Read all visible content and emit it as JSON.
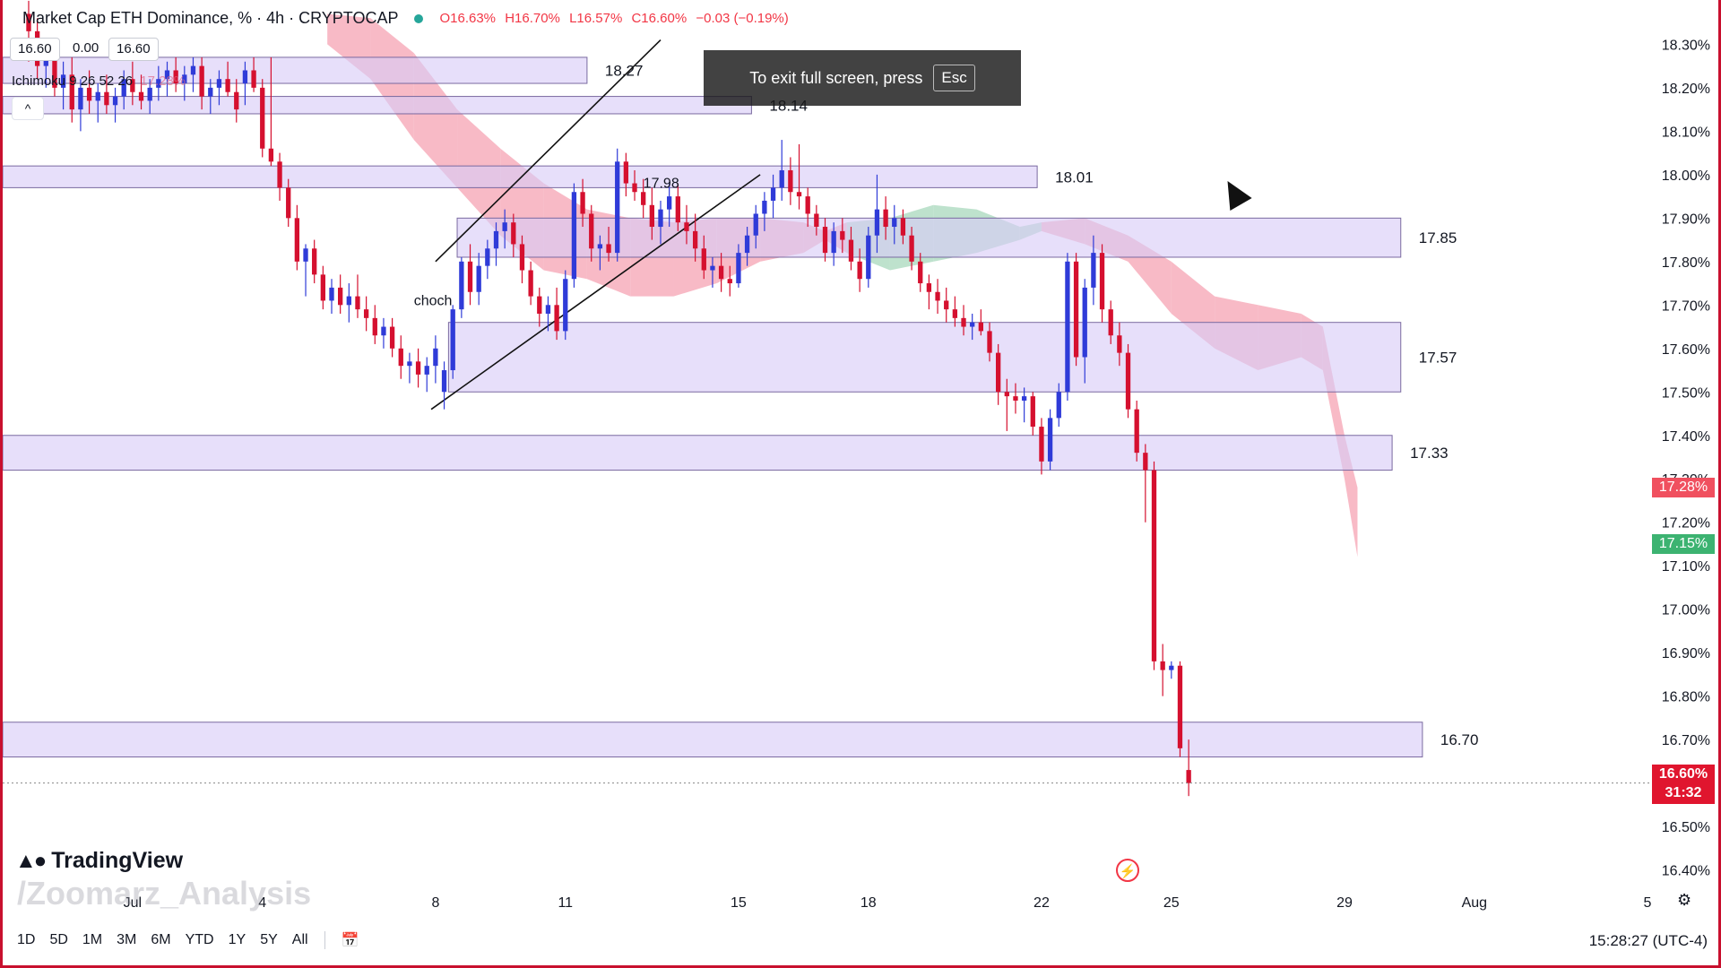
{
  "legend": {
    "symbol": "Market Cap ETH Dominance, % · 4h · CRYPTOCAP",
    "open": "O16.63%",
    "high": "H16.70%",
    "low": "L16.57%",
    "close": "C16.60%",
    "change": "−0.03 (−0.19%)"
  },
  "value_boxes": [
    "16.60",
    "0.00",
    "16.60"
  ],
  "indicator": {
    "name": "Ichimoku 9 26 52 26",
    "value": "17.28%"
  },
  "collapse_label": "^",
  "fullscreen_toast": {
    "text": "To exit full screen, press",
    "key": "Esc"
  },
  "brand": {
    "name": "TradingView",
    "watermark": "/Zoomarz_Analysis"
  },
  "timeframes": [
    "1D",
    "5D",
    "1M",
    "3M",
    "6M",
    "YTD",
    "1Y",
    "5Y",
    "All"
  ],
  "clock": "15:28:27 (UTC-4)",
  "current_price": {
    "value": "16.60%",
    "countdown": "31:32"
  },
  "price_badges": [
    {
      "label": "17.28%",
      "value": 17.28,
      "color": "#f0505f"
    },
    {
      "label": "17.15%",
      "value": 17.15,
      "color": "#3cb371"
    }
  ],
  "colors": {
    "up": "#2f3bd8",
    "down": "#d5102f",
    "zone": "#d9ccf7",
    "zone_border": "#7a6aa0",
    "cloud_bear": "#f5a3b3",
    "cloud_bull": "#a8d8bc"
  },
  "chart_data": {
    "type": "candlestick",
    "y_axis": {
      "min": 16.36,
      "max": 18.34,
      "ticks": [
        "18.30%",
        "18.20%",
        "18.10%",
        "18.00%",
        "17.90%",
        "17.80%",
        "17.70%",
        "17.60%",
        "17.50%",
        "17.40%",
        "17.30%",
        "17.20%",
        "17.10%",
        "17.00%",
        "16.90%",
        "16.80%",
        "16.70%",
        "16.60%",
        "16.50%",
        "16.40%"
      ],
      "tick_values": [
        18.3,
        18.2,
        18.1,
        18.0,
        17.9,
        17.8,
        17.7,
        17.6,
        17.5,
        17.4,
        17.3,
        17.2,
        17.1,
        17.0,
        16.9,
        16.8,
        16.7,
        16.6,
        16.5,
        16.4
      ]
    },
    "x_axis": {
      "min": -3,
      "max": 35,
      "labels": [
        "Jul",
        "4",
        "8",
        "11",
        "15",
        "18",
        "22",
        "25",
        "29",
        "Aug",
        "5"
      ],
      "label_values": [
        0,
        3,
        7,
        10,
        14,
        17,
        21,
        24,
        28,
        31,
        35
      ]
    },
    "zones": [
      {
        "top": 18.27,
        "bottom": 18.21,
        "x0": -3,
        "x1": 10.5,
        "label": "18.27"
      },
      {
        "top": 18.18,
        "bottom": 18.14,
        "x0": -3,
        "x1": 14.3,
        "label": "18.14"
      },
      {
        "top": 18.02,
        "bottom": 17.97,
        "x0": -3,
        "x1": 20.9,
        "label": "18.01"
      },
      {
        "top": 17.9,
        "bottom": 17.81,
        "x0": 7.5,
        "x1": 29.3,
        "label": "17.85"
      },
      {
        "top": 17.66,
        "bottom": 17.5,
        "x0": 7.3,
        "x1": 29.3,
        "label": "17.57"
      },
      {
        "top": 17.4,
        "bottom": 17.32,
        "x0": -3,
        "x1": 29.1,
        "label": "17.33"
      },
      {
        "top": 16.74,
        "bottom": 16.66,
        "x0": -3,
        "x1": 29.8,
        "label": "16.70"
      }
    ],
    "annotations": [
      {
        "text": "choch",
        "x": 6.5,
        "y": 17.7
      },
      {
        "text": "17.98",
        "x": 11.8,
        "y": 17.97
      }
    ],
    "channel_lines": [
      {
        "x0": 7.0,
        "y0": 17.8,
        "x1": 12.2,
        "y1": 18.31
      },
      {
        "x0": 6.9,
        "y0": 17.46,
        "x1": 14.5,
        "y1": 18.0
      }
    ],
    "candles": [
      [
        -2.4,
        18.37,
        18.4,
        18.26,
        18.33
      ],
      [
        -2.2,
        18.33,
        18.36,
        18.22,
        18.25
      ],
      [
        -2.0,
        18.25,
        18.3,
        18.2,
        18.28
      ],
      [
        -1.8,
        18.28,
        18.31,
        18.18,
        18.2
      ],
      [
        -1.6,
        18.2,
        18.26,
        18.15,
        18.23
      ],
      [
        -1.4,
        18.23,
        18.27,
        18.12,
        18.15
      ],
      [
        -1.2,
        18.15,
        18.22,
        18.1,
        18.2
      ],
      [
        -1.0,
        18.2,
        18.24,
        18.14,
        18.17
      ],
      [
        -0.8,
        18.17,
        18.21,
        18.12,
        18.19
      ],
      [
        -0.6,
        18.19,
        18.23,
        18.14,
        18.16
      ],
      [
        -0.4,
        18.16,
        18.2,
        18.12,
        18.18
      ],
      [
        -0.2,
        18.18,
        18.24,
        18.15,
        18.22
      ],
      [
        0.0,
        18.22,
        18.26,
        18.16,
        18.19
      ],
      [
        0.2,
        18.19,
        18.23,
        18.15,
        18.17
      ],
      [
        0.4,
        18.17,
        18.22,
        18.14,
        18.2
      ],
      [
        0.6,
        18.2,
        18.25,
        18.17,
        18.22
      ],
      [
        0.8,
        18.22,
        18.26,
        18.18,
        18.24
      ],
      [
        1.0,
        18.24,
        18.27,
        18.19,
        18.21
      ],
      [
        1.2,
        18.21,
        18.25,
        18.17,
        18.23
      ],
      [
        1.4,
        18.23,
        18.27,
        18.19,
        18.25
      ],
      [
        1.6,
        18.25,
        18.27,
        18.15,
        18.18
      ],
      [
        1.8,
        18.18,
        18.22,
        18.14,
        18.2
      ],
      [
        2.0,
        18.2,
        18.24,
        18.16,
        18.22
      ],
      [
        2.2,
        18.22,
        18.26,
        18.18,
        18.19
      ],
      [
        2.4,
        18.19,
        18.22,
        18.12,
        18.15
      ],
      [
        2.6,
        18.21,
        18.26,
        18.16,
        18.24
      ],
      [
        2.8,
        18.24,
        18.27,
        18.19,
        18.2
      ],
      [
        3.0,
        18.2,
        18.22,
        18.04,
        18.06
      ],
      [
        3.2,
        18.06,
        18.27,
        18.02,
        18.03
      ],
      [
        3.4,
        18.03,
        18.05,
        17.94,
        17.97
      ],
      [
        3.6,
        17.97,
        17.99,
        17.88,
        17.9
      ],
      [
        3.8,
        17.9,
        17.93,
        17.78,
        17.8
      ],
      [
        4.0,
        17.8,
        17.84,
        17.72,
        17.83
      ],
      [
        4.2,
        17.83,
        17.85,
        17.75,
        17.77
      ],
      [
        4.4,
        17.77,
        17.79,
        17.69,
        17.71
      ],
      [
        4.6,
        17.71,
        17.76,
        17.68,
        17.74
      ],
      [
        4.8,
        17.74,
        17.77,
        17.68,
        17.7
      ],
      [
        5.0,
        17.7,
        17.75,
        17.66,
        17.72
      ],
      [
        5.2,
        17.72,
        17.77,
        17.67,
        17.69
      ],
      [
        5.4,
        17.69,
        17.72,
        17.64,
        17.67
      ],
      [
        5.6,
        17.67,
        17.7,
        17.61,
        17.63
      ],
      [
        5.8,
        17.63,
        17.67,
        17.6,
        17.65
      ],
      [
        6.0,
        17.65,
        17.67,
        17.58,
        17.6
      ],
      [
        6.2,
        17.6,
        17.63,
        17.53,
        17.56
      ],
      [
        6.4,
        17.56,
        17.59,
        17.52,
        17.57
      ],
      [
        6.6,
        17.57,
        17.6,
        17.51,
        17.54
      ],
      [
        6.8,
        17.54,
        17.58,
        17.5,
        17.56
      ],
      [
        7.0,
        17.56,
        17.63,
        17.52,
        17.6
      ],
      [
        7.2,
        17.5,
        17.57,
        17.46,
        17.55
      ],
      [
        7.4,
        17.55,
        17.7,
        17.53,
        17.69
      ],
      [
        7.6,
        17.69,
        17.81,
        17.67,
        17.8
      ],
      [
        7.8,
        17.8,
        17.84,
        17.7,
        17.73
      ],
      [
        8.0,
        17.73,
        17.82,
        17.7,
        17.79
      ],
      [
        8.2,
        17.79,
        17.85,
        17.76,
        17.83
      ],
      [
        8.4,
        17.83,
        17.89,
        17.79,
        17.87
      ],
      [
        8.6,
        17.87,
        17.92,
        17.83,
        17.89
      ],
      [
        8.8,
        17.89,
        17.91,
        17.81,
        17.84
      ],
      [
        9.0,
        17.84,
        17.86,
        17.75,
        17.78
      ],
      [
        9.2,
        17.78,
        17.8,
        17.7,
        17.72
      ],
      [
        9.4,
        17.72,
        17.74,
        17.65,
        17.68
      ],
      [
        9.6,
        17.68,
        17.72,
        17.64,
        17.7
      ],
      [
        9.8,
        17.7,
        17.74,
        17.62,
        17.64
      ],
      [
        10.0,
        17.64,
        17.78,
        17.62,
        17.76
      ],
      [
        10.2,
        17.76,
        17.98,
        17.74,
        17.96
      ],
      [
        10.4,
        17.96,
        17.99,
        17.88,
        17.91
      ],
      [
        10.6,
        17.91,
        17.93,
        17.8,
        17.83
      ],
      [
        10.8,
        17.83,
        17.86,
        17.78,
        17.84
      ],
      [
        11.0,
        17.84,
        17.88,
        17.8,
        17.82
      ],
      [
        11.2,
        17.82,
        18.06,
        17.8,
        18.03
      ],
      [
        11.4,
        18.03,
        18.05,
        17.95,
        17.98
      ],
      [
        11.6,
        17.98,
        18.01,
        17.94,
        17.96
      ],
      [
        11.8,
        17.96,
        17.99,
        17.9,
        17.93
      ],
      [
        12.0,
        17.93,
        17.97,
        17.85,
        17.88
      ],
      [
        12.2,
        17.88,
        17.94,
        17.84,
        17.92
      ],
      [
        12.4,
        17.92,
        17.98,
        17.88,
        17.95
      ],
      [
        12.6,
        17.95,
        17.98,
        17.87,
        17.89
      ],
      [
        12.8,
        17.89,
        17.93,
        17.84,
        17.87
      ],
      [
        13.0,
        17.87,
        17.91,
        17.8,
        17.83
      ],
      [
        13.2,
        17.83,
        17.86,
        17.76,
        17.78
      ],
      [
        13.4,
        17.78,
        17.81,
        17.74,
        17.79
      ],
      [
        13.6,
        17.79,
        17.82,
        17.73,
        17.76
      ],
      [
        13.8,
        17.76,
        17.79,
        17.72,
        17.75
      ],
      [
        14.0,
        17.75,
        17.84,
        17.74,
        17.82
      ],
      [
        14.2,
        17.82,
        17.88,
        17.79,
        17.86
      ],
      [
        14.4,
        17.86,
        17.93,
        17.83,
        17.91
      ],
      [
        14.6,
        17.91,
        17.96,
        17.87,
        17.94
      ],
      [
        14.8,
        17.94,
        18.0,
        17.9,
        17.97
      ],
      [
        15.0,
        17.97,
        18.08,
        17.94,
        18.01
      ],
      [
        15.2,
        18.01,
        18.04,
        17.93,
        17.96
      ],
      [
        15.4,
        17.96,
        18.07,
        17.92,
        17.95
      ],
      [
        15.6,
        17.95,
        17.97,
        17.88,
        17.91
      ],
      [
        15.8,
        17.91,
        17.93,
        17.86,
        17.88
      ],
      [
        16.0,
        17.88,
        17.9,
        17.8,
        17.82
      ],
      [
        16.2,
        17.82,
        17.89,
        17.79,
        17.87
      ],
      [
        16.4,
        17.87,
        17.9,
        17.82,
        17.85
      ],
      [
        16.6,
        17.85,
        17.88,
        17.78,
        17.8
      ],
      [
        16.8,
        17.8,
        17.83,
        17.73,
        17.76
      ],
      [
        17.0,
        17.76,
        17.88,
        17.74,
        17.86
      ],
      [
        17.2,
        17.86,
        18.0,
        17.82,
        17.92
      ],
      [
        17.4,
        17.92,
        17.95,
        17.85,
        17.88
      ],
      [
        17.6,
        17.88,
        17.93,
        17.84,
        17.9
      ],
      [
        17.8,
        17.9,
        17.92,
        17.84,
        17.86
      ],
      [
        18.0,
        17.86,
        17.88,
        17.78,
        17.8
      ],
      [
        18.2,
        17.8,
        17.82,
        17.73,
        17.75
      ],
      [
        18.4,
        17.75,
        17.77,
        17.69,
        17.73
      ],
      [
        18.6,
        17.73,
        17.76,
        17.68,
        17.71
      ],
      [
        18.8,
        17.71,
        17.74,
        17.66,
        17.69
      ],
      [
        19.0,
        17.69,
        17.72,
        17.65,
        17.67
      ],
      [
        19.2,
        17.67,
        17.7,
        17.63,
        17.65
      ],
      [
        19.4,
        17.65,
        17.68,
        17.62,
        17.66
      ],
      [
        19.6,
        17.66,
        17.69,
        17.63,
        17.64
      ],
      [
        19.8,
        17.64,
        17.66,
        17.57,
        17.59
      ],
      [
        20.0,
        17.59,
        17.61,
        17.47,
        17.5
      ],
      [
        20.2,
        17.5,
        17.53,
        17.41,
        17.49
      ],
      [
        20.4,
        17.49,
        17.52,
        17.45,
        17.48
      ],
      [
        20.6,
        17.48,
        17.51,
        17.43,
        17.49
      ],
      [
        20.8,
        17.49,
        17.5,
        17.4,
        17.42
      ],
      [
        21.0,
        17.42,
        17.44,
        17.31,
        17.34
      ],
      [
        21.2,
        17.34,
        17.46,
        17.32,
        17.44
      ],
      [
        21.4,
        17.44,
        17.52,
        17.42,
        17.5
      ],
      [
        21.6,
        17.5,
        17.82,
        17.48,
        17.8
      ],
      [
        21.8,
        17.8,
        17.82,
        17.56,
        17.58
      ],
      [
        22.0,
        17.58,
        17.76,
        17.52,
        17.74
      ],
      [
        22.2,
        17.74,
        17.86,
        17.7,
        17.82
      ],
      [
        22.4,
        17.82,
        17.84,
        17.66,
        17.69
      ],
      [
        22.6,
        17.69,
        17.71,
        17.61,
        17.63
      ],
      [
        22.8,
        17.63,
        17.66,
        17.56,
        17.59
      ],
      [
        23.0,
        17.59,
        17.61,
        17.44,
        17.46
      ],
      [
        23.2,
        17.46,
        17.48,
        17.34,
        17.36
      ],
      [
        23.4,
        17.36,
        17.38,
        17.2,
        17.32
      ],
      [
        23.6,
        17.32,
        17.34,
        16.86,
        16.88
      ],
      [
        23.8,
        16.88,
        16.92,
        16.8,
        16.86
      ],
      [
        24.0,
        16.86,
        16.88,
        16.84,
        16.87
      ],
      [
        24.2,
        16.87,
        16.88,
        16.66,
        16.68
      ],
      [
        24.4,
        16.63,
        16.7,
        16.57,
        16.6
      ]
    ],
    "cloud": [
      {
        "x": 4.5,
        "top": 18.37,
        "bottom": 18.3,
        "color": "bear"
      },
      {
        "x": 5.5,
        "top": 18.36,
        "bottom": 18.22,
        "color": "bear"
      },
      {
        "x": 6.5,
        "top": 18.28,
        "bottom": 18.08,
        "color": "bear"
      },
      {
        "x": 7.5,
        "top": 18.15,
        "bottom": 17.97,
        "color": "bear"
      },
      {
        "x": 8.5,
        "top": 18.06,
        "bottom": 17.86,
        "color": "bear"
      },
      {
        "x": 9.5,
        "top": 17.98,
        "bottom": 17.78,
        "color": "bear"
      },
      {
        "x": 10.5,
        "top": 17.92,
        "bottom": 17.76,
        "color": "bear"
      },
      {
        "x": 11.5,
        "top": 17.9,
        "bottom": 17.72,
        "color": "bear"
      },
      {
        "x": 12.5,
        "top": 17.89,
        "bottom": 17.72,
        "color": "bear"
      },
      {
        "x": 13.5,
        "top": 17.9,
        "bottom": 17.75,
        "color": "bear"
      },
      {
        "x": 14.5,
        "top": 17.9,
        "bottom": 17.8,
        "color": "bear"
      },
      {
        "x": 15.5,
        "top": 17.89,
        "bottom": 17.82,
        "color": "bear"
      },
      {
        "x": 16.0,
        "top": 17.87,
        "bottom": 17.85,
        "color": "bear"
      },
      {
        "x": 16.5,
        "top": 17.89,
        "bottom": 17.82,
        "color": "bull"
      },
      {
        "x": 17.5,
        "top": 17.9,
        "bottom": 17.78,
        "color": "bull"
      },
      {
        "x": 18.5,
        "top": 17.93,
        "bottom": 17.8,
        "color": "bull"
      },
      {
        "x": 19.5,
        "top": 17.92,
        "bottom": 17.82,
        "color": "bull"
      },
      {
        "x": 20.5,
        "top": 17.88,
        "bottom": 17.85,
        "color": "bull"
      },
      {
        "x": 21.0,
        "top": 17.89,
        "bottom": 17.87,
        "color": "bear"
      },
      {
        "x": 22.0,
        "top": 17.9,
        "bottom": 17.84,
        "color": "bear"
      },
      {
        "x": 23.0,
        "top": 17.86,
        "bottom": 17.8,
        "color": "bear"
      },
      {
        "x": 24.0,
        "top": 17.8,
        "bottom": 17.68,
        "color": "bear"
      },
      {
        "x": 25.0,
        "top": 17.72,
        "bottom": 17.6,
        "color": "bear"
      },
      {
        "x": 26.0,
        "top": 17.7,
        "bottom": 17.55,
        "color": "bear"
      },
      {
        "x": 27.0,
        "top": 17.68,
        "bottom": 17.58,
        "color": "bear"
      },
      {
        "x": 27.5,
        "top": 17.65,
        "bottom": 17.55,
        "color": "bear"
      },
      {
        "x": 28.0,
        "top": 17.4,
        "bottom": 17.3,
        "color": "bear"
      },
      {
        "x": 28.3,
        "top": 17.28,
        "bottom": 17.12,
        "color": "bear"
      }
    ]
  }
}
